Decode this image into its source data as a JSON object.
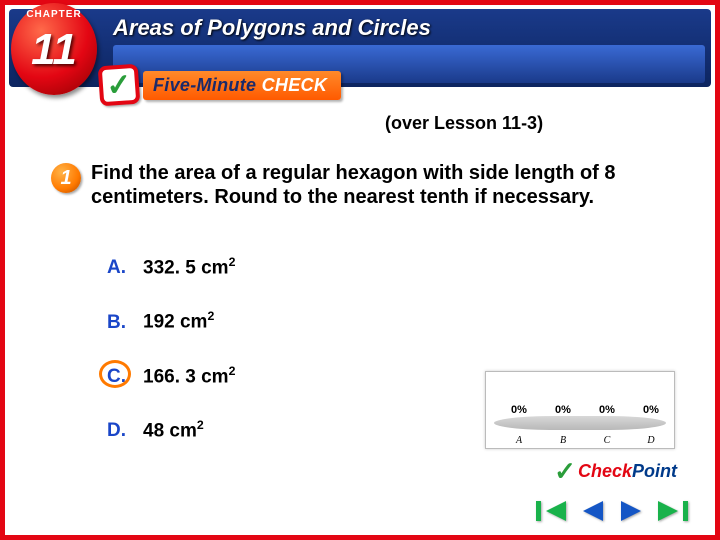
{
  "chapter": {
    "label": "CHAPTER",
    "number": "11"
  },
  "banner": {
    "title": "Areas of Polygons and Circles",
    "fmc_prefix": "Five-Minute",
    "fmc_suffix": "CHECK"
  },
  "lesson_ref": "(over Lesson 11-3)",
  "question": {
    "number": "1",
    "text": "Find the area of a regular hexagon with side length of 8 centimeters. Round to the nearest tenth if necessary."
  },
  "options": [
    {
      "letter": "A.",
      "value": "332. 5 cm",
      "exp": "2",
      "correct": false
    },
    {
      "letter": "B.",
      "value": "192 cm",
      "exp": "2",
      "correct": false
    },
    {
      "letter": "C.",
      "value": "166. 3 cm",
      "exp": "2",
      "correct": true
    },
    {
      "letter": "D.",
      "value": "48 cm",
      "exp": "2",
      "correct": false
    }
  ],
  "mini_chart": {
    "type": "bar",
    "columns": [
      "A",
      "B",
      "C",
      "D"
    ],
    "values_label": [
      "0%",
      "0%",
      "0%",
      "0%"
    ],
    "platform_color": "#c8c8c8",
    "text_color": "#000000"
  },
  "checkpoint": {
    "check_part": "Check",
    "point_part": "Point"
  },
  "colors": {
    "frame": "#e30613",
    "banner_top": "#1a3a8a",
    "banner_bottom": "#0d2560",
    "option_letter": "#1a46c8",
    "correct_ring": "#ff7a00",
    "nav_green": "#19b24b",
    "nav_blue": "#1556c5"
  }
}
